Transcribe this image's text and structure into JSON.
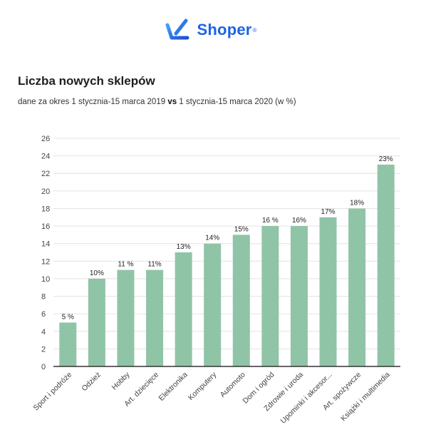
{
  "brand": {
    "name": "Shoper",
    "registered": "®",
    "color": "#1d63e3",
    "icon": "shoper-logo-icon"
  },
  "header": {
    "title": "Liczba nowych sklepów",
    "subtitle_before": "dane za okres 1 stycznia-15 marca 2019 ",
    "subtitle_bold": "vs",
    "subtitle_after": " 1 stycznia-15 marca 2020 (w %)"
  },
  "chart_data": {
    "type": "bar",
    "title": "Liczba nowych sklepów",
    "xlabel": "",
    "ylabel": "",
    "ylim": [
      0,
      26
    ],
    "yticks": [
      0,
      2,
      4,
      6,
      8,
      10,
      12,
      14,
      16,
      18,
      20,
      22,
      24,
      26
    ],
    "grid": true,
    "bar_color": "#90c4a6",
    "categories": [
      "Sport i podróże",
      "Odzież",
      "Hobby",
      "Art. dziecięce",
      "Elektronika",
      "Komputery",
      "Automoto",
      "Dom i ogród",
      "Zdrowie i uroda",
      "Upominki i akcesor...",
      "Art. spożywcze",
      "Książki i multimedia"
    ],
    "values": [
      5,
      10,
      11,
      11,
      13,
      14,
      15,
      16,
      16,
      17,
      18,
      23
    ],
    "data_labels": [
      "5 %",
      "10%",
      "11 %",
      "11%",
      "13%",
      "14%",
      "15%",
      "16 %",
      "16%",
      "17%",
      "18%",
      "23%"
    ]
  }
}
